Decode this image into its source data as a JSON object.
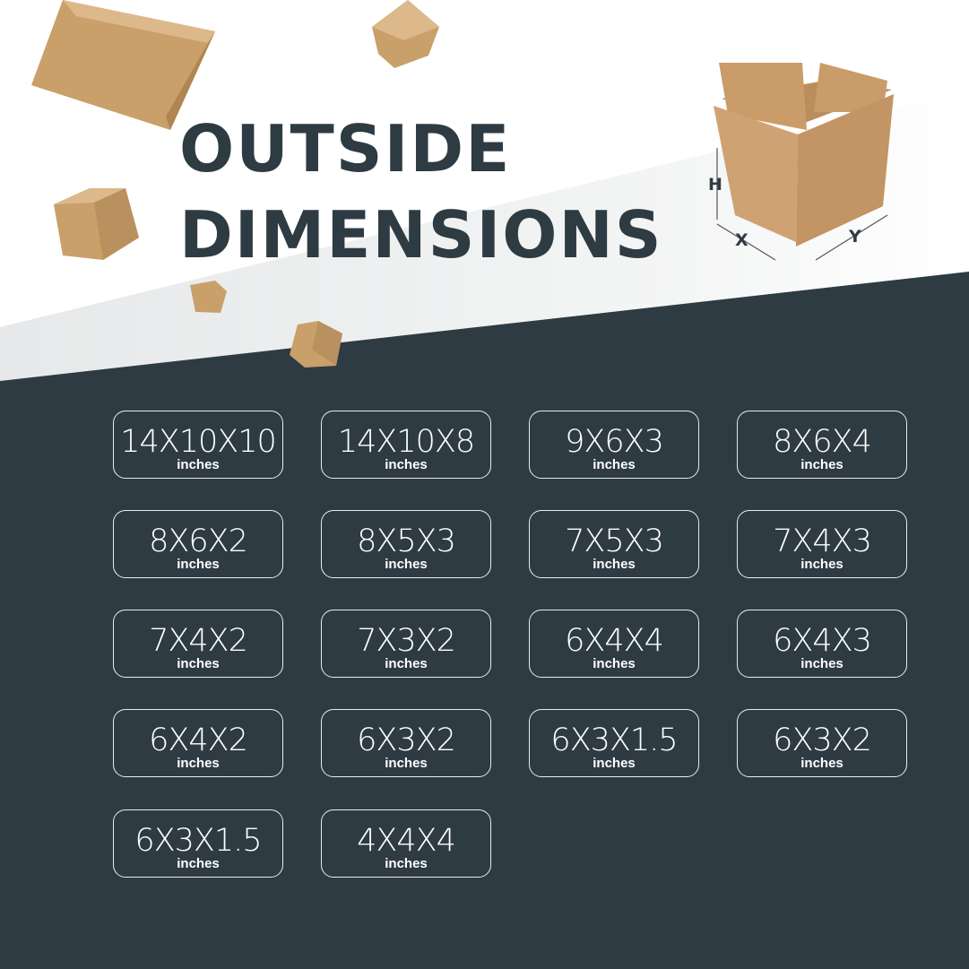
{
  "title": {
    "line1": "OUTSIDE",
    "line2": "DIMENSIONS"
  },
  "diagram": {
    "height_label": "H",
    "x_label": "X",
    "y_label": "Y"
  },
  "unit": "inches",
  "sizes": [
    "14X10X10",
    "14X10X8",
    "9X6X3",
    "8X6X4",
    "8X6X2",
    "8X5X3",
    "7X5X3",
    "7X4X3",
    "7X4X2",
    "7X3X2",
    "6X4X4",
    "6X4X3",
    "6X4X2",
    "6X3X2",
    "6X3X1.5",
    "6X3X2",
    "6X3X1.5",
    "4X4X4"
  ],
  "colors": {
    "dark": "#2e3b43",
    "cardboard": "#c9a06a",
    "band": "#eef0f1"
  }
}
